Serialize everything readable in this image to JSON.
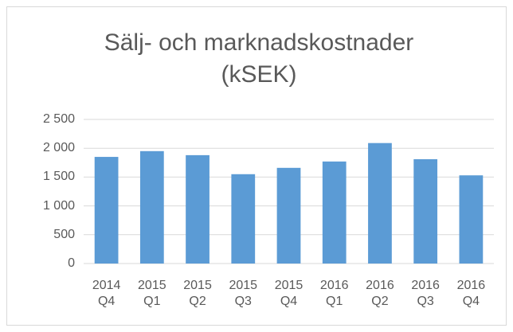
{
  "chart_data": {
    "type": "bar",
    "title": "Sälj- och marknadskostnader (kSEK)",
    "categories": [
      "2014 Q4",
      "2015 Q1",
      "2015 Q2",
      "2015 Q3",
      "2015 Q4",
      "2016 Q1",
      "2016 Q2",
      "2016 Q3",
      "2016 Q4"
    ],
    "values": [
      1850,
      1950,
      1880,
      1550,
      1660,
      1770,
      2090,
      1810,
      1530
    ],
    "color": "#5b9bd5",
    "ylim": [
      0,
      2500
    ],
    "yticks": [
      0,
      500,
      {
        "value": 1000,
        "label": "1 000"
      },
      {
        "value": 1500,
        "label": "1 500"
      },
      {
        "value": 2000,
        "label": "2 000"
      },
      {
        "value": 2500,
        "label": "2 500"
      }
    ],
    "grid": true
  }
}
